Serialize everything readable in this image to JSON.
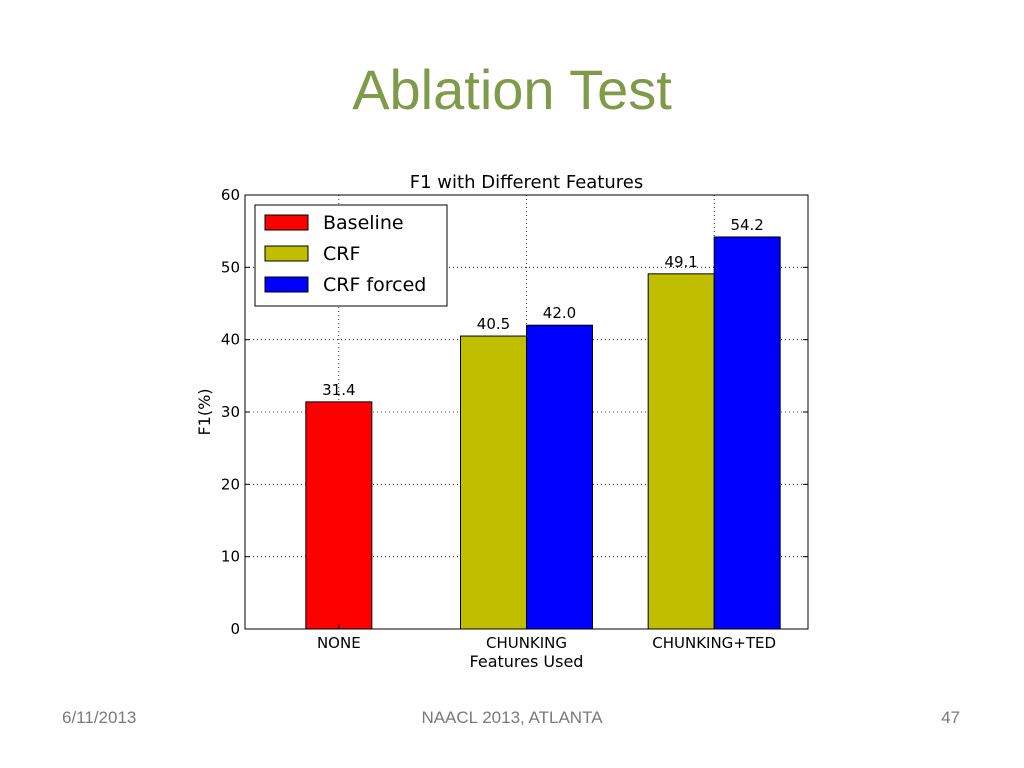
{
  "slide": {
    "title": "Ablation Test",
    "footer_date": "6/11/2013",
    "footer_venue": "NAACL 2013, ATLANTA",
    "page_number": "47"
  },
  "chart_data": {
    "type": "bar",
    "title": "F1 with Different Features",
    "xlabel": "Features Used",
    "ylabel": "F1(%)",
    "ylim": [
      0,
      60
    ],
    "yticks": [
      0,
      10,
      20,
      30,
      40,
      50,
      60
    ],
    "categories": [
      "NONE",
      "CHUNKING",
      "CHUNKING+TED"
    ],
    "grid": true,
    "legend": "top-left",
    "series": [
      {
        "name": "Baseline",
        "color": "#ff0000",
        "values": [
          31.4,
          null,
          null
        ]
      },
      {
        "name": "CRF",
        "color": "#bfbf00",
        "values": [
          null,
          40.5,
          49.1
        ]
      },
      {
        "name": "CRF forced",
        "color": "#0000ff",
        "values": [
          null,
          42.0,
          54.2
        ]
      }
    ],
    "bar_labels": [
      {
        "category": 0,
        "series": 0,
        "text": "31.4"
      },
      {
        "category": 1,
        "series": 1,
        "text": "40.5"
      },
      {
        "category": 1,
        "series": 2,
        "text": "42.0"
      },
      {
        "category": 2,
        "series": 1,
        "text": "49.1"
      },
      {
        "category": 2,
        "series": 2,
        "text": "54.2"
      }
    ]
  }
}
